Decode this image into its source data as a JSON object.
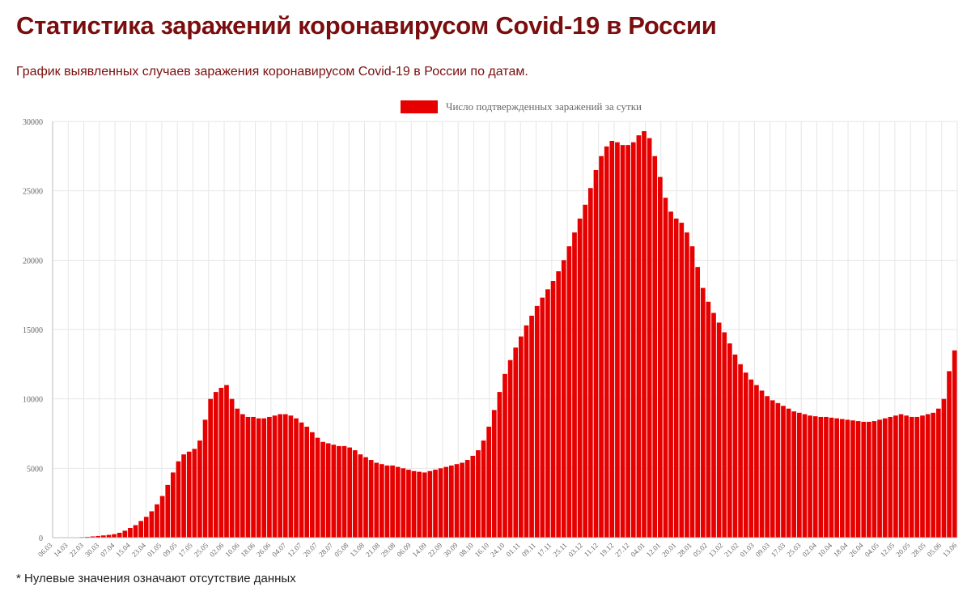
{
  "page": {
    "title": "Статистика заражений коронавирусом Covid-19 в России",
    "subtitle": "График выявленных случаев заражения коронавирусом Covid-19 в России по датам.",
    "footnote": "* Нулевые значения означают отсутствие данных"
  },
  "colors": {
    "title": "#7a0e0e",
    "bar": "#e60000",
    "grid": "#e6e6e6"
  },
  "chart_data": {
    "type": "bar",
    "legend": {
      "label": "Число подтвержденных заражений за сутки",
      "position": "top-center"
    },
    "grid": true,
    "ylim": [
      0,
      30000
    ],
    "yticks": [
      0,
      5000,
      10000,
      15000,
      20000,
      25000,
      30000
    ],
    "xticks": [
      "06.03",
      "14.03",
      "22.03",
      "30.03",
      "07.04",
      "15.04",
      "23.04",
      "01.05",
      "09.05",
      "17.05",
      "25.05",
      "02.06",
      "10.06",
      "18.06",
      "26.06",
      "04.07",
      "12.07",
      "20.07",
      "28.07",
      "05.08",
      "13.08",
      "21.08",
      "29.08",
      "06.09",
      "14.09",
      "22.09",
      "30.09",
      "08.10",
      "16.10",
      "24.10",
      "01.11",
      "09.11",
      "17.11",
      "25.11",
      "03.12",
      "11.12",
      "19.12",
      "27.12",
      "04.01",
      "12.01",
      "20.01",
      "28.01",
      "05.02",
      "13.02",
      "21.02",
      "01.03",
      "09.03",
      "17.03",
      "25.03",
      "02.04",
      "10.04",
      "18.04",
      "26.04",
      "04.05",
      "12.05",
      "20.05",
      "28.05",
      "05.06",
      "13.06"
    ],
    "series": [
      {
        "start": "06.03",
        "interval_days": 2,
        "values": [
          0,
          0,
          0,
          0,
          20,
          40,
          60,
          90,
          120,
          160,
          200,
          250,
          350,
          500,
          700,
          900,
          1200,
          1500,
          1900,
          2400,
          3000,
          3800,
          4700,
          5500,
          6000,
          6200,
          6400,
          7000,
          8500,
          10000,
          10500,
          10800,
          11000,
          10000,
          9300,
          8900,
          8700,
          8700,
          8600,
          8600,
          8700,
          8800,
          8900,
          8900,
          8800,
          8600,
          8300,
          8000,
          7600,
          7200,
          6900,
          6800,
          6700,
          6600,
          6600,
          6500,
          6300,
          6000,
          5800,
          5600,
          5400,
          5300,
          5200,
          5200,
          5100,
          5000,
          4900,
          4800,
          4750,
          4700,
          4800,
          4900,
          5000,
          5100,
          5200,
          5300,
          5400,
          5600,
          5900,
          6300,
          7000,
          8000,
          9200,
          10500,
          11800,
          12800,
          13700,
          14500,
          15300,
          16000,
          16700,
          17300,
          17900,
          18500,
          19200,
          20000,
          21000,
          22000,
          23000,
          24000,
          25200,
          26500,
          27500,
          28200,
          28600,
          28500,
          28300,
          28300,
          28500,
          29000,
          29300,
          28800,
          27500,
          26000,
          24500,
          23500,
          23000,
          22700,
          22000,
          21000,
          19500,
          18000,
          17000,
          16200,
          15500,
          14800,
          14000,
          13200,
          12500,
          11900,
          11400,
          11000,
          10600,
          10200,
          9900,
          9700,
          9500,
          9300,
          9100,
          9000,
          8900,
          8800,
          8750,
          8700,
          8700,
          8650,
          8600,
          8550,
          8500,
          8450,
          8400,
          8350,
          8350,
          8400,
          8500,
          8600,
          8700,
          8800,
          8900,
          8800,
          8700,
          8700,
          8800,
          8900,
          9000,
          9300,
          10000,
          12000,
          13500
        ]
      }
    ]
  }
}
